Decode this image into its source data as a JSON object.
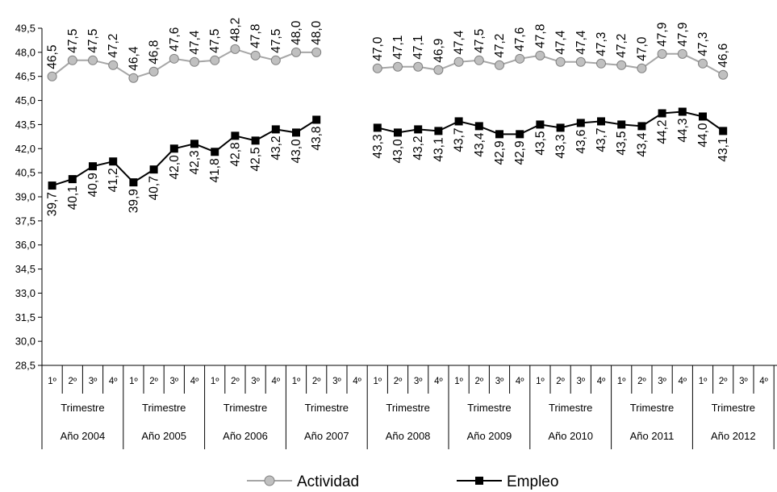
{
  "chart_data": {
    "type": "line",
    "title": "",
    "xlabel": "",
    "ylabel": "",
    "ylim": [
      28.5,
      49.5
    ],
    "yticks": [
      "49,5",
      "48,0",
      "46,5",
      "45,0",
      "43,5",
      "42,0",
      "40,5",
      "39,0",
      "37,5",
      "36,0",
      "34,5",
      "33,0",
      "31,5",
      "30,0",
      "28,5"
    ],
    "quarter_labels": [
      "1º",
      "2º",
      "3º",
      "4º"
    ],
    "group_sublabel": "Trimestre",
    "years": [
      "Año 2004",
      "Año 2005",
      "Año 2006",
      "Año 2007",
      "Año 2008",
      "Año 2009",
      "Año 2010",
      "Año 2011",
      "Año 2012"
    ],
    "legend_position": "bottom",
    "series": [
      {
        "name": "Actividad",
        "color": "#a6a6a6",
        "marker": "circle",
        "values": [
          46.5,
          47.5,
          47.5,
          47.2,
          46.4,
          46.8,
          47.6,
          47.4,
          47.5,
          48.2,
          47.8,
          47.5,
          48.0,
          48.0,
          null,
          null,
          47.0,
          47.1,
          47.1,
          46.9,
          47.4,
          47.5,
          47.2,
          47.6,
          47.8,
          47.4,
          47.4,
          47.3,
          47.2,
          47.0,
          47.9,
          47.9,
          47.3,
          46.6,
          null,
          null
        ],
        "labels": [
          "46,5",
          "47,5",
          "47,5",
          "47,2",
          "46,4",
          "46,8",
          "47,6",
          "47,4",
          "47,5",
          "48,2",
          "47,8",
          "47,5",
          "48,0",
          "48,0",
          "",
          "",
          "47,0",
          "47,1",
          "47,1",
          "46,9",
          "47,4",
          "47,5",
          "47,2",
          "47,6",
          "47,8",
          "47,4",
          "47,4",
          "47,3",
          "47,2",
          "47,0",
          "47,9",
          "47,9",
          "47,3",
          "46,6",
          "",
          ""
        ]
      },
      {
        "name": "Empleo",
        "color": "#000000",
        "marker": "square",
        "values": [
          39.7,
          40.1,
          40.9,
          41.2,
          39.9,
          40.7,
          42.0,
          42.3,
          41.8,
          42.8,
          42.5,
          43.2,
          43.0,
          43.8,
          null,
          null,
          43.3,
          43.0,
          43.2,
          43.1,
          43.7,
          43.4,
          42.9,
          42.9,
          43.5,
          43.3,
          43.6,
          43.7,
          43.5,
          43.4,
          44.2,
          44.3,
          44.0,
          43.1,
          null,
          null
        ],
        "labels": [
          "39,7",
          "40,1",
          "40,9",
          "41,2",
          "39,9",
          "40,7",
          "42,0",
          "42,3",
          "41,8",
          "42,8",
          "42,5",
          "43,2",
          "43,0",
          "43,8",
          "",
          "",
          "43,3",
          "43,0",
          "43,2",
          "43,1",
          "43,7",
          "43,4",
          "42,9",
          "42,9",
          "43,5",
          "43,3",
          "43,6",
          "43,7",
          "43,5",
          "43,4",
          "44,2",
          "44,3",
          "44,0",
          "43,1",
          "",
          ""
        ]
      }
    ]
  }
}
